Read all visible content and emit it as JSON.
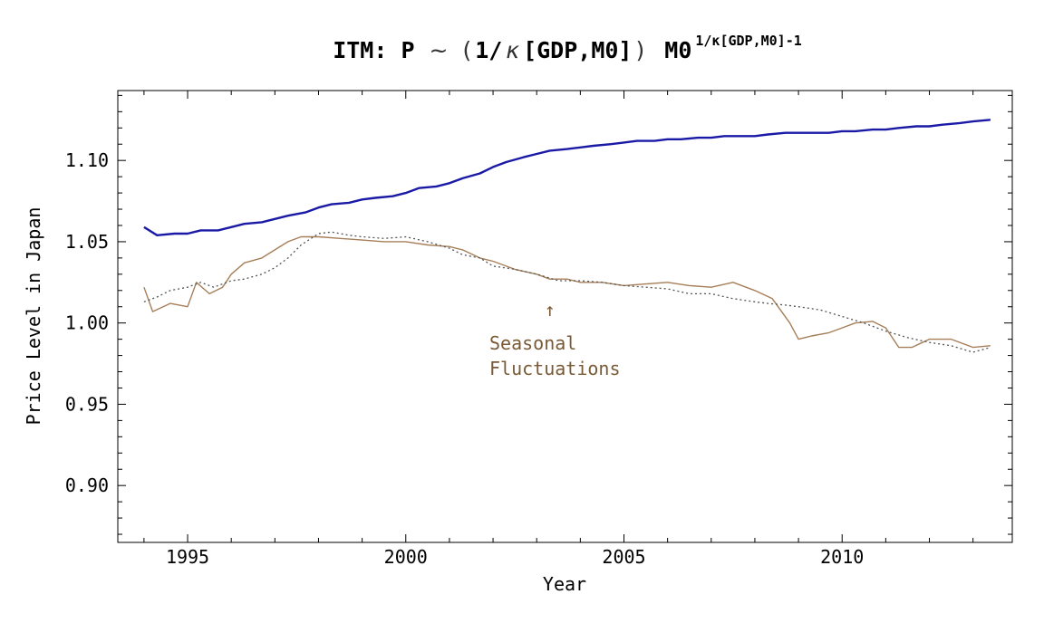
{
  "chart_data": {
    "type": "line",
    "title": {
      "prefix": "ITM: P",
      "tilde": "~",
      "paren_open": "(",
      "one_over": "1/",
      "kappa": "κ",
      "bracket_args": "[GDP,M0]",
      "paren_close": ")",
      "base": "M0",
      "superscript": "1/κ[GDP,M0]-1"
    },
    "xlabel": "Year",
    "ylabel": "Price Level in Japan",
    "xlim": [
      1993.4,
      2013.9
    ],
    "ylim": [
      0.865,
      1.143
    ],
    "x_ticks": [
      1995,
      2000,
      2005,
      2010
    ],
    "y_ticks": [
      0.9,
      0.95,
      1.0,
      1.05,
      1.1
    ],
    "y_tick_labels": [
      "0.90",
      "0.95",
      "1.00",
      "1.05",
      "1.10"
    ],
    "grid": false,
    "series": [
      {
        "color": "#1a1aa6",
        "style": "solid-thick",
        "points": [
          [
            1994.0,
            1.059
          ],
          [
            1994.3,
            1.054
          ],
          [
            1994.7,
            1.055
          ],
          [
            1995.0,
            1.055
          ],
          [
            1995.3,
            1.057
          ],
          [
            1995.7,
            1.057
          ],
          [
            1996.0,
            1.059
          ],
          [
            1996.3,
            1.061
          ],
          [
            1996.7,
            1.062
          ],
          [
            1997.0,
            1.064
          ],
          [
            1997.3,
            1.066
          ],
          [
            1997.7,
            1.068
          ],
          [
            1998.0,
            1.071
          ],
          [
            1998.3,
            1.073
          ],
          [
            1998.7,
            1.074
          ],
          [
            1999.0,
            1.076
          ],
          [
            1999.3,
            1.077
          ],
          [
            1999.7,
            1.078
          ],
          [
            2000.0,
            1.08
          ],
          [
            2000.3,
            1.083
          ],
          [
            2000.7,
            1.084
          ],
          [
            2001.0,
            1.086
          ],
          [
            2001.3,
            1.089
          ],
          [
            2001.7,
            1.092
          ],
          [
            2002.0,
            1.096
          ],
          [
            2002.3,
            1.099
          ],
          [
            2002.7,
            1.102
          ],
          [
            2003.0,
            1.104
          ],
          [
            2003.3,
            1.106
          ],
          [
            2003.7,
            1.107
          ],
          [
            2004.0,
            1.108
          ],
          [
            2004.3,
            1.109
          ],
          [
            2004.7,
            1.11
          ],
          [
            2005.0,
            1.111
          ],
          [
            2005.3,
            1.112
          ],
          [
            2005.7,
            1.112
          ],
          [
            2006.0,
            1.113
          ],
          [
            2006.3,
            1.113
          ],
          [
            2006.7,
            1.114
          ],
          [
            2007.0,
            1.114
          ],
          [
            2007.3,
            1.115
          ],
          [
            2007.7,
            1.115
          ],
          [
            2008.0,
            1.115
          ],
          [
            2008.3,
            1.116
          ],
          [
            2008.7,
            1.117
          ],
          [
            2009.0,
            1.117
          ],
          [
            2009.3,
            1.117
          ],
          [
            2009.7,
            1.117
          ],
          [
            2010.0,
            1.118
          ],
          [
            2010.3,
            1.118
          ],
          [
            2010.7,
            1.119
          ],
          [
            2011.0,
            1.119
          ],
          [
            2011.3,
            1.12
          ],
          [
            2011.7,
            1.121
          ],
          [
            2012.0,
            1.121
          ],
          [
            2012.3,
            1.122
          ],
          [
            2012.7,
            1.123
          ],
          [
            2013.0,
            1.124
          ],
          [
            2013.4,
            1.125
          ]
        ]
      },
      {
        "color": "#a67f59",
        "style": "solid-thin",
        "points": [
          [
            1994.0,
            1.022
          ],
          [
            1994.2,
            1.007
          ],
          [
            1994.6,
            1.012
          ],
          [
            1995.0,
            1.01
          ],
          [
            1995.2,
            1.025
          ],
          [
            1995.5,
            1.018
          ],
          [
            1995.8,
            1.022
          ],
          [
            1996.0,
            1.03
          ],
          [
            1996.3,
            1.037
          ],
          [
            1996.7,
            1.04
          ],
          [
            1997.0,
            1.045
          ],
          [
            1997.3,
            1.05
          ],
          [
            1997.6,
            1.053
          ],
          [
            1998.0,
            1.053
          ],
          [
            1998.5,
            1.052
          ],
          [
            1999.0,
            1.051
          ],
          [
            1999.5,
            1.05
          ],
          [
            2000.0,
            1.05
          ],
          [
            2000.5,
            1.048
          ],
          [
            2001.0,
            1.047
          ],
          [
            2001.3,
            1.045
          ],
          [
            2001.7,
            1.04
          ],
          [
            2002.0,
            1.038
          ],
          [
            2002.5,
            1.033
          ],
          [
            2003.0,
            1.03
          ],
          [
            2003.3,
            1.027
          ],
          [
            2003.7,
            1.027
          ],
          [
            2004.0,
            1.025
          ],
          [
            2004.5,
            1.025
          ],
          [
            2005.0,
            1.023
          ],
          [
            2005.5,
            1.024
          ],
          [
            2006.0,
            1.025
          ],
          [
            2006.5,
            1.023
          ],
          [
            2007.0,
            1.022
          ],
          [
            2007.5,
            1.025
          ],
          [
            2008.0,
            1.02
          ],
          [
            2008.4,
            1.015
          ],
          [
            2008.8,
            1.0
          ],
          [
            2009.0,
            0.99
          ],
          [
            2009.3,
            0.992
          ],
          [
            2009.7,
            0.994
          ],
          [
            2010.0,
            0.997
          ],
          [
            2010.3,
            1.0
          ],
          [
            2010.7,
            1.001
          ],
          [
            2011.0,
            0.997
          ],
          [
            2011.3,
            0.985
          ],
          [
            2011.6,
            0.985
          ],
          [
            2012.0,
            0.99
          ],
          [
            2012.5,
            0.99
          ],
          [
            2013.0,
            0.985
          ],
          [
            2013.4,
            0.986
          ]
        ]
      },
      {
        "color": "#555555",
        "style": "dotted",
        "points": [
          [
            1994.0,
            1.013
          ],
          [
            1994.3,
            1.016
          ],
          [
            1994.6,
            1.02
          ],
          [
            1995.0,
            1.022
          ],
          [
            1995.3,
            1.025
          ],
          [
            1995.6,
            1.022
          ],
          [
            1996.0,
            1.026
          ],
          [
            1996.3,
            1.027
          ],
          [
            1996.7,
            1.03
          ],
          [
            1997.0,
            1.034
          ],
          [
            1997.3,
            1.04
          ],
          [
            1997.6,
            1.048
          ],
          [
            1998.0,
            1.055
          ],
          [
            1998.3,
            1.056
          ],
          [
            1998.7,
            1.054
          ],
          [
            1999.0,
            1.053
          ],
          [
            1999.5,
            1.052
          ],
          [
            2000.0,
            1.053
          ],
          [
            2000.5,
            1.05
          ],
          [
            2001.0,
            1.046
          ],
          [
            2001.3,
            1.042
          ],
          [
            2001.7,
            1.04
          ],
          [
            2002.0,
            1.035
          ],
          [
            2002.5,
            1.033
          ],
          [
            2003.0,
            1.03
          ],
          [
            2003.5,
            1.026
          ],
          [
            2004.0,
            1.026
          ],
          [
            2004.5,
            1.025
          ],
          [
            2005.0,
            1.023
          ],
          [
            2005.5,
            1.022
          ],
          [
            2006.0,
            1.021
          ],
          [
            2006.5,
            1.018
          ],
          [
            2007.0,
            1.018
          ],
          [
            2007.5,
            1.015
          ],
          [
            2008.0,
            1.013
          ],
          [
            2008.3,
            1.012
          ],
          [
            2008.7,
            1.011
          ],
          [
            2009.0,
            1.01
          ],
          [
            2009.5,
            1.008
          ],
          [
            2010.0,
            1.004
          ],
          [
            2010.5,
            1.0
          ],
          [
            2011.0,
            0.995
          ],
          [
            2011.5,
            0.991
          ],
          [
            2012.0,
            0.988
          ],
          [
            2012.5,
            0.986
          ],
          [
            2013.0,
            0.982
          ],
          [
            2013.4,
            0.985
          ]
        ]
      }
    ],
    "annotations": [
      {
        "text_lines": [
          "Seasonal",
          "Fluctuations"
        ],
        "arrow": "↑",
        "x": 2003.3,
        "y": 1.007,
        "color": "#7a5a36"
      }
    ]
  }
}
